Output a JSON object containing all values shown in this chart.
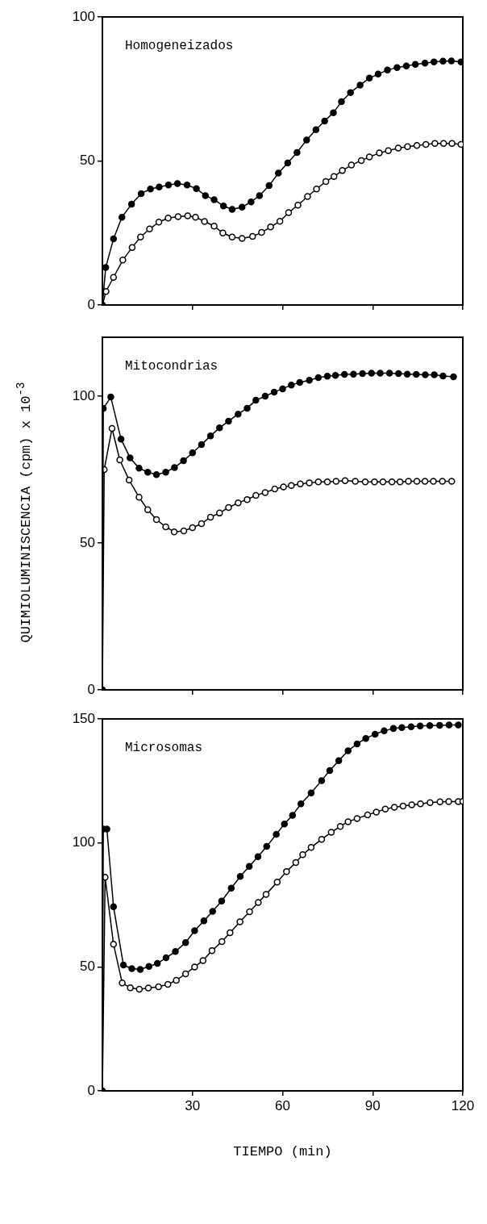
{
  "chart_data": [
    {
      "type": "line",
      "annotations": [
        "Homogeneizados"
      ],
      "xlim": [
        0,
        120
      ],
      "xticks": [
        30,
        60,
        90,
        120
      ],
      "ylim": [
        0,
        100
      ],
      "yticks": [
        0,
        50,
        100
      ],
      "tick_labels": "y",
      "grid": false,
      "legend": false,
      "marker": "circle",
      "line_style": "solid",
      "series": [
        {
          "color": "#000000",
          "x": [
            0,
            1.1,
            3.7,
            6.5,
            9.7,
            12.9,
            16,
            18.9,
            22,
            25,
            28.2,
            31.3,
            34.3,
            37.2,
            40.3,
            43.2,
            46.5,
            49.5,
            52.3,
            55.5,
            58.6,
            61.7,
            64.8,
            68,
            71.1,
            74,
            76.9,
            79.6,
            82.6,
            85.8,
            88.9,
            91.8,
            94.9,
            98.1,
            101.2,
            104.2,
            107.4,
            110.4,
            113.4,
            116.2,
            119.4
          ],
          "values": [
            0,
            13,
            23,
            30.5,
            35,
            38.7,
            40.3,
            41,
            41.7,
            42.2,
            41.7,
            40.4,
            38,
            36.6,
            34.4,
            33.2,
            34,
            35.8,
            38,
            41.5,
            45.8,
            49.3,
            53,
            57.3,
            60.9,
            63.9,
            66.8,
            70.6,
            73.8,
            76.4,
            78.8,
            80.2,
            81.6,
            82.5,
            83,
            83.6,
            84,
            84.4,
            84.7,
            84.8,
            84.4
          ]
        },
        {
          "color": "#000000",
          "x": [
            0,
            1.2,
            3.7,
            6.8,
            9.9,
            12.7,
            15.7,
            18.8,
            21.9,
            25.2,
            28.4,
            31,
            34,
            37.2,
            40.1,
            43.2,
            46.5,
            50,
            53,
            56,
            59.1,
            62,
            65.1,
            68.3,
            71.3,
            74.4,
            77.1,
            79.9,
            82.9,
            86.2,
            88.9,
            92.2,
            95.2,
            98.5,
            101.6,
            104.7,
            107.7,
            110.7,
            113.6,
            116.4,
            119.4
          ],
          "values": [
            0,
            4.7,
            9.6,
            15.6,
            20,
            23.6,
            26.4,
            28.8,
            30.2,
            30.7,
            31,
            30.5,
            29,
            27.4,
            25,
            23.6,
            23.1,
            23.8,
            25.2,
            27.1,
            29.1,
            32.1,
            34.7,
            37.7,
            40.3,
            42.9,
            44.6,
            46.7,
            48.6,
            50.2,
            51.4,
            52.8,
            53.6,
            54.5,
            55,
            55.4,
            55.8,
            56.1,
            56.1,
            56.1,
            55.8
          ]
        }
      ]
    },
    {
      "type": "line",
      "annotations": [
        "Mitocondrias"
      ],
      "ylabel": "QUIMIOLUMINISCENCIA (cpm) x 10$^{-3}$",
      "xlim": [
        0,
        120
      ],
      "xticks": [
        30,
        60,
        90,
        120
      ],
      "ylim": [
        0,
        120
      ],
      "yticks": [
        0,
        50,
        100
      ],
      "tick_labels": "y",
      "grid": false,
      "legend": false,
      "marker": "circle",
      "line_style": "solid",
      "series": [
        {
          "color": "#000000",
          "x": [
            0,
            0.3,
            2.8,
            6.2,
            9.2,
            12.2,
            15.1,
            18,
            21.1,
            24,
            27,
            30,
            33,
            36,
            39,
            42,
            45.2,
            48.2,
            51.1,
            54.2,
            57.2,
            60,
            62.9,
            65.7,
            68.9,
            71.9,
            74.9,
            77.6,
            80.6,
            83.6,
            86.6,
            89.6,
            92.5,
            95.6,
            98.6,
            101.5,
            104.5,
            107.5,
            110.5,
            113.4,
            116.9
          ],
          "values": [
            0,
            95.8,
            99.7,
            85.4,
            79,
            75.5,
            74.1,
            73.3,
            74.1,
            75.7,
            78,
            80.7,
            83.5,
            86.5,
            89.2,
            91.5,
            93.9,
            95.9,
            98.6,
            100,
            101.4,
            102.5,
            103.8,
            104.7,
            105.4,
            106.3,
            106.8,
            107.1,
            107.4,
            107.5,
            107.7,
            107.8,
            107.8,
            107.8,
            107.7,
            107.5,
            107.4,
            107.3,
            107.3,
            106.9,
            106.6
          ]
        },
        {
          "color": "#000000",
          "x": [
            0,
            0.6,
            3.2,
            5.8,
            8.9,
            12.2,
            15.1,
            18,
            21.1,
            23.9,
            27.1,
            30,
            33,
            36,
            39,
            42,
            45.2,
            48.2,
            51.1,
            54.2,
            57.4,
            60.3,
            62.9,
            65.9,
            68.9,
            71.9,
            74.9,
            77.8,
            80.8,
            84.2,
            87.5,
            90.6,
            93.4,
            96.4,
            99.1,
            101.9,
            104.7,
            107.4,
            110.2,
            113.2,
            116.3
          ],
          "values": [
            0,
            75,
            89,
            78.3,
            71.4,
            65.6,
            61.3,
            58,
            55.5,
            53.8,
            54.1,
            55.2,
            56.6,
            58.8,
            60.2,
            62.1,
            63.7,
            64.8,
            66.2,
            67.2,
            68.4,
            69.1,
            69.6,
            70.1,
            70.5,
            70.8,
            70.8,
            71,
            71.2,
            71,
            70.8,
            70.8,
            70.8,
            70.8,
            70.8,
            71,
            71,
            71,
            71,
            71,
            71
          ]
        }
      ]
    },
    {
      "type": "line",
      "annotations": [
        "Microsomas"
      ],
      "xlabel": "TIEMPO (min)",
      "xlim": [
        0,
        120
      ],
      "xticks": [
        30,
        60,
        90,
        120
      ],
      "ylim": [
        0,
        150
      ],
      "yticks": [
        0,
        50,
        100,
        150
      ],
      "grid": false,
      "legend": false,
      "marker": "circle",
      "line_style": "solid",
      "series": [
        {
          "color": "#000000",
          "x": [
            0,
            0.3,
            1.5,
            3.7,
            7,
            9.8,
            12.6,
            15.5,
            18.3,
            21.2,
            24.3,
            27.7,
            30.7,
            33.8,
            36.7,
            39.7,
            42.9,
            45.9,
            48.9,
            51.8,
            54.7,
            57.9,
            60.6,
            63.3,
            66.1,
            69.5,
            73,
            75.7,
            78.7,
            81.8,
            84.8,
            87.7,
            90.8,
            93.8,
            96.9,
            99.7,
            102.8,
            105.8,
            109,
            112.3,
            115.4,
            118.5
          ],
          "values": [
            0,
            105.6,
            105.6,
            74.3,
            50.8,
            49.3,
            49,
            50.2,
            51.4,
            53.7,
            56.2,
            59.8,
            64.6,
            68.6,
            72.4,
            76.6,
            81.8,
            86.5,
            90.6,
            94.5,
            98.6,
            103.5,
            107.7,
            111.2,
            115.8,
            120.2,
            125.2,
            129.2,
            133.2,
            137.2,
            140,
            142.2,
            143.9,
            145.3,
            146.2,
            146.6,
            146.9,
            147.2,
            147.4,
            147.5,
            147.6,
            147.6
          ]
        },
        {
          "color": "#000000",
          "x": [
            0,
            0.9,
            3.7,
            6.6,
            9.3,
            12.3,
            15.3,
            18.7,
            21.8,
            24.6,
            27.7,
            30.7,
            33.5,
            36.5,
            39.8,
            42.5,
            45.8,
            49,
            51.9,
            54.5,
            58.2,
            61.3,
            64.4,
            66.7,
            69.5,
            73,
            76.2,
            79.2,
            81.8,
            84.8,
            88.3,
            91.2,
            94.2,
            97.2,
            100.1,
            103,
            105.9,
            109.1,
            112.4,
            115.3,
            118.5,
            120
          ],
          "values": [
            0,
            86.2,
            59.2,
            43.5,
            41.6,
            41,
            41.5,
            42,
            43,
            44.6,
            47.2,
            50,
            52.6,
            56.6,
            60.2,
            63.8,
            68.2,
            72.3,
            76,
            79.3,
            84.2,
            88.5,
            92.1,
            95.3,
            98.2,
            101.5,
            104.3,
            106.7,
            108.6,
            109.9,
            111.3,
            112.5,
            113.7,
            114.4,
            114.9,
            115.4,
            115.8,
            116.3,
            116.6,
            116.7,
            116.7,
            116.8
          ]
        }
      ]
    }
  ]
}
